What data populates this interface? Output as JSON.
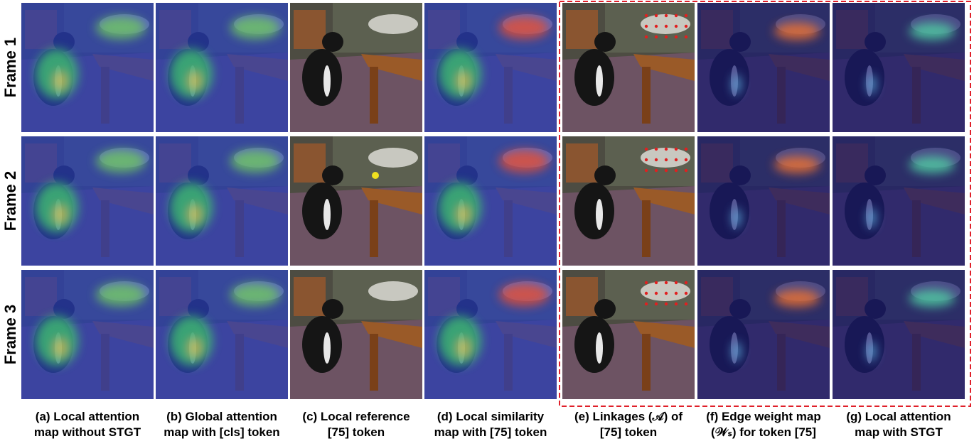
{
  "rows": [
    "Frame 1",
    "Frame 2",
    "Frame 3"
  ],
  "columns": [
    {
      "line1": "(a) Local attention",
      "line2": "map without STGT"
    },
    {
      "line1": "(b) Global attention",
      "line2": "map with [cls] token"
    },
    {
      "line1": "(c) Local reference",
      "line2": "[75]  token"
    },
    {
      "line1": "(d) Local similarity",
      "line2": "map with [75] token"
    },
    {
      "line1": "(e) Linkages (𝒜) of",
      "line2": "[75] token"
    },
    {
      "line1": "(f) Edge weight map",
      "line2": "(𝒲ₛ) for token [75]"
    },
    {
      "line1": "(g) Local attention",
      "line2": "map with STGT"
    }
  ]
}
